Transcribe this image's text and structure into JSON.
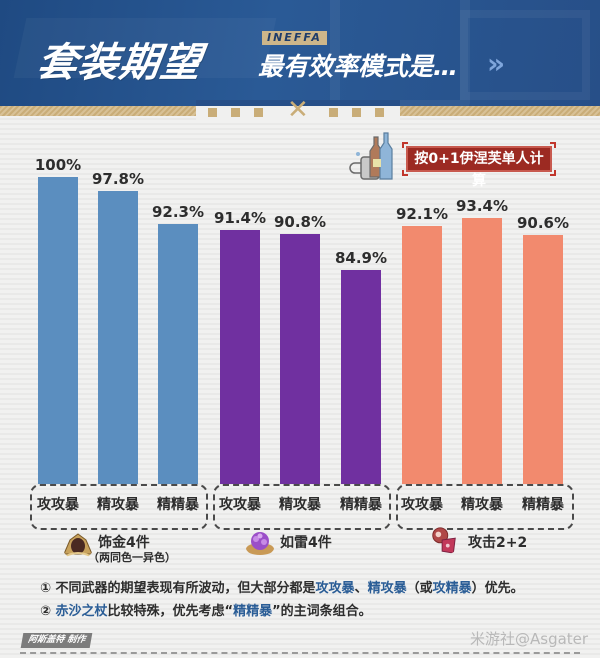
{
  "header": {
    "title": "套装期望",
    "tag": "INEFFA",
    "subtitle": "最有效率模式是…",
    "chevron": "»"
  },
  "note": {
    "calc_basis": "按0+1伊涅芙单人计算"
  },
  "colors": {
    "header_bg": "#274f88",
    "gold_band": "#c9ad78",
    "gilded": "#5b8ebf",
    "thunder": "#7030a0",
    "atk": "#f28a6e",
    "badge": "#9c2a22",
    "highlight": "#2a5d96"
  },
  "groups": [
    {
      "set": "饰金4件",
      "sub": "（两同色一异色）",
      "icon": "gilded-dreams-flower-icon",
      "categories": [
        "攻攻暴",
        "精攻暴",
        "精精暴"
      ],
      "labels": [
        "100%",
        "97.8%",
        "92.3%"
      ]
    },
    {
      "set": "如雷4件",
      "sub": "",
      "icon": "thundering-fury-flower-icon",
      "categories": [
        "攻攻暴",
        "精攻暴",
        "精精暴"
      ],
      "labels": [
        "91.4%",
        "90.8%",
        "84.9%"
      ]
    },
    {
      "set": "攻击2+2",
      "sub": "",
      "icon": "atk-set-flower-icon",
      "categories": [
        "攻攻暴",
        "精攻暴",
        "精精暴"
      ],
      "labels": [
        "92.1%",
        "93.4%",
        "90.6%"
      ]
    }
  ],
  "chart_data": {
    "type": "bar",
    "title": "套装期望 — 最有效率模式是…",
    "subtitle": "按0+1伊涅芙单人计算",
    "categories": [
      "攻攻暴",
      "精攻暴",
      "精精暴"
    ],
    "series": [
      {
        "name": "饰金4件（两同色一异色）",
        "color": "#5b8ebf",
        "values": [
          100,
          97.8,
          92.3
        ]
      },
      {
        "name": "如雷4件",
        "color": "#7030a0",
        "values": [
          91.4,
          90.8,
          84.9
        ]
      },
      {
        "name": "攻击2+2",
        "color": "#f28a6e",
        "values": [
          92.1,
          93.4,
          90.6
        ]
      }
    ],
    "value_format": "percent",
    "xlabel": "",
    "ylabel": "",
    "grid": false,
    "legend_position": "bottom (per group)"
  },
  "footnotes": {
    "n1": {
      "num": "①",
      "t1": " 不同武器的期望表现有所波动，但大部分都是",
      "h1": "攻攻暴",
      "t2": "、",
      "h2": "精攻暴",
      "t3": "（或",
      "h3": "攻精暴",
      "t4": "）优先。"
    },
    "n2": {
      "num": "②",
      "h1": " 赤沙之杖",
      "t1": "比较特殊，优先考虑“",
      "h2": "精精暴",
      "t2": "”的主词条组合。"
    }
  },
  "credit": "阿斯盖特 制作",
  "watermark": "米游社@Asgater"
}
